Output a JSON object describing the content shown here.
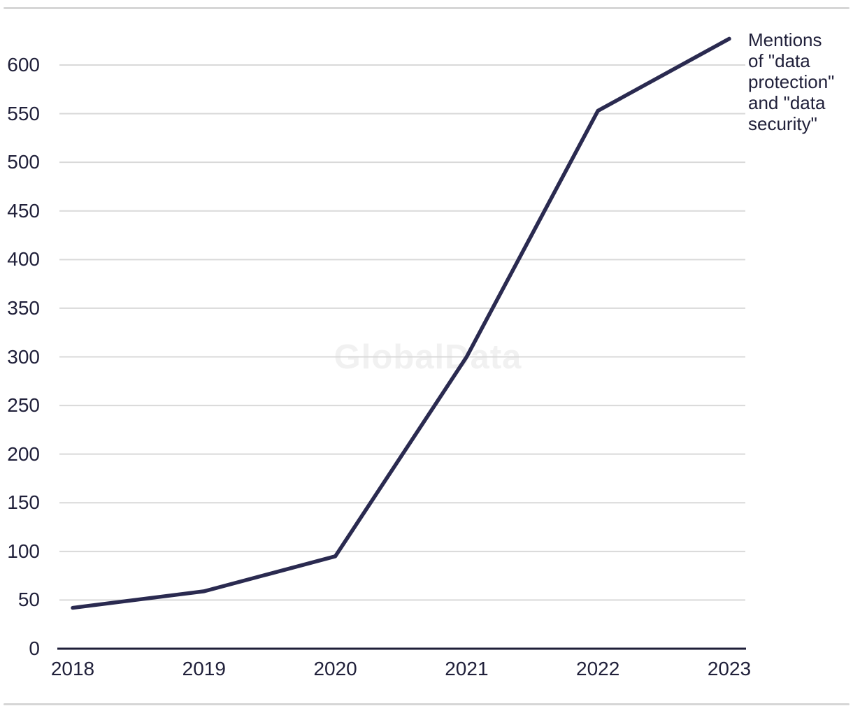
{
  "watermark": {
    "text": "GlobalData",
    "color": "#f1f1f1"
  },
  "annotation": {
    "lines": [
      "Mentions",
      "of \"data",
      "protection\"",
      "and \"data",
      "security\""
    ],
    "color": "#20203a"
  },
  "chart_data": {
    "type": "line",
    "title": "",
    "xlabel": "",
    "ylabel": "",
    "categories": [
      "2018",
      "2019",
      "2020",
      "2021",
      "2022",
      "2023"
    ],
    "series": [
      {
        "name": "Mentions of \"data protection\" and \"data security\"",
        "values": [
          42,
          59,
          95,
          300,
          553,
          627
        ]
      }
    ],
    "yticks": [
      0,
      50,
      100,
      150,
      200,
      250,
      300,
      350,
      400,
      450,
      500,
      550,
      600
    ],
    "ylim": [
      0,
      650
    ],
    "grid": true,
    "legend_position": "line-end-annotation",
    "line_color": "#2a2a50",
    "grid_color": "#d9d9d9",
    "axis_color": "#1e1e38",
    "label_color": "#20203a",
    "rule_color": "#d6d6d6"
  }
}
